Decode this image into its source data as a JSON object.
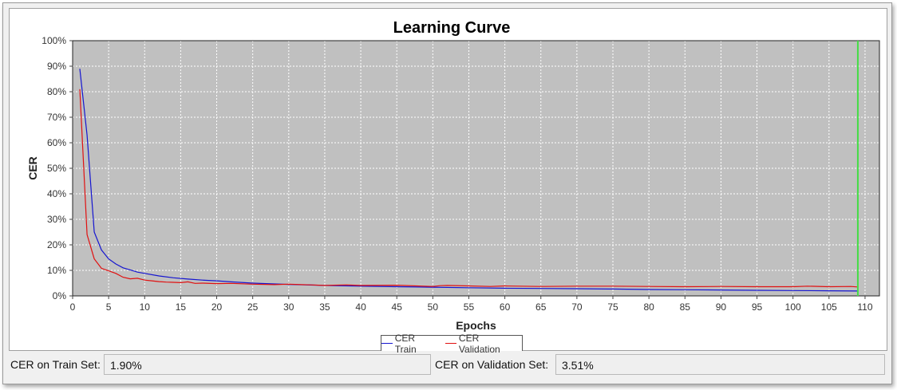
{
  "stats": {
    "train_label": "CER on Train Set:",
    "train_value": "1.90%",
    "validation_label": "CER on Validation Set:",
    "validation_value": "3.51%"
  },
  "colors": {
    "train": "#1515d0",
    "validation": "#e01010",
    "marker": "#44dd44",
    "plot_background": "#c0c0c0",
    "grid": "#ffffff"
  },
  "chart_data": {
    "type": "line",
    "title": "Learning Curve",
    "xlabel": "Epochs",
    "ylabel": "CER",
    "xlim": [
      0,
      112
    ],
    "ylim": [
      0,
      100
    ],
    "x_ticks": [
      0,
      5,
      10,
      15,
      20,
      25,
      30,
      35,
      40,
      45,
      50,
      55,
      60,
      65,
      70,
      75,
      80,
      85,
      90,
      95,
      100,
      105,
      110
    ],
    "y_ticks": [
      0,
      10,
      20,
      30,
      40,
      50,
      60,
      70,
      80,
      90,
      100
    ],
    "y_tick_labels": [
      "0%",
      "10%",
      "20%",
      "30%",
      "40%",
      "50%",
      "60%",
      "70%",
      "80%",
      "90%",
      "100%"
    ],
    "grid": true,
    "legend_position": "bottom-center",
    "marker_x": 109,
    "series": [
      {
        "name": "CER Train",
        "x": [
          1,
          2,
          3,
          4,
          5,
          6,
          7,
          8,
          9,
          10,
          12,
          14,
          16,
          18,
          20,
          22,
          25,
          28,
          30,
          35,
          40,
          45,
          50,
          55,
          60,
          65,
          70,
          75,
          80,
          85,
          90,
          95,
          100,
          105,
          109
        ],
        "y": [
          89,
          63,
          25,
          18,
          14.5,
          12.5,
          11,
          10.2,
          9.3,
          8.8,
          7.8,
          7.1,
          6.6,
          6.2,
          5.9,
          5.5,
          5.0,
          4.7,
          4.5,
          4.1,
          3.8,
          3.6,
          3.4,
          3.2,
          3.0,
          2.9,
          2.8,
          2.7,
          2.5,
          2.4,
          2.3,
          2.2,
          2.1,
          2.0,
          1.9
        ]
      },
      {
        "name": "CER Validation",
        "x": [
          1,
          2,
          3,
          4,
          5,
          6,
          7,
          8,
          9,
          10,
          11,
          12,
          13,
          14,
          15,
          16,
          17,
          18,
          20,
          22,
          25,
          28,
          30,
          33,
          35,
          38,
          40,
          45,
          50,
          51,
          52,
          55,
          58,
          60,
          62,
          65,
          70,
          75,
          80,
          85,
          90,
          95,
          100,
          102,
          105,
          108,
          109
        ],
        "y": [
          81,
          24,
          14.5,
          10.8,
          9.8,
          8.8,
          7.3,
          6.7,
          6.9,
          6.2,
          5.9,
          5.6,
          5.4,
          5.3,
          5.2,
          5.5,
          4.9,
          5.0,
          4.8,
          4.9,
          4.6,
          4.4,
          4.6,
          4.3,
          4.1,
          4.3,
          4.1,
          4.2,
          3.7,
          4.0,
          4.1,
          3.9,
          3.7,
          3.9,
          3.8,
          3.7,
          3.8,
          3.8,
          3.7,
          3.6,
          3.7,
          3.6,
          3.6,
          3.8,
          3.6,
          3.7,
          3.51
        ]
      }
    ]
  }
}
